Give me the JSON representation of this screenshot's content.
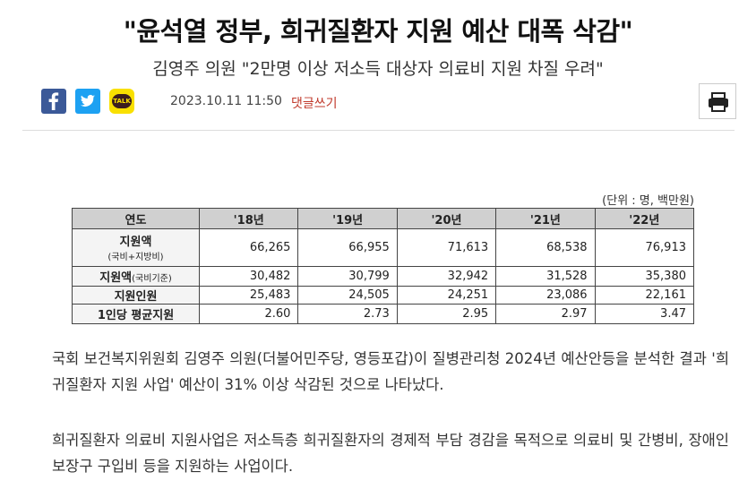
{
  "header": {
    "title": "\"윤석열 정부, 희귀질환자 지원 예산 대폭 삭감\"",
    "subtitle": "김영주 의원 \"2만명 이상 저소득 대상자 의료비 지원 차질 우려\""
  },
  "meta": {
    "kakao_label": "TALK",
    "datetime": "2023.10.11 11:50",
    "comment": "댓글쓰기"
  },
  "table": {
    "unit": "(단위 : 명, 백만원)",
    "header": [
      "연도",
      "'18년",
      "'19년",
      "'20년",
      "'21년",
      "'22년"
    ],
    "rows": [
      {
        "label": "지원액",
        "sublabel": "(국비+지방비)",
        "cells": [
          "66,265",
          "66,955",
          "71,613",
          "68,538",
          "76,913"
        ]
      },
      {
        "label": "지원액",
        "sublabel": "(국비기준)",
        "cells": [
          "30,482",
          "30,799",
          "32,942",
          "31,528",
          "35,380"
        ]
      },
      {
        "label": "지원인원",
        "cells": [
          "25,483",
          "24,505",
          "24,251",
          "23,086",
          "22,161"
        ]
      },
      {
        "label": "1인당 평균지원",
        "cells": [
          "2.60",
          "2.73",
          "2.95",
          "2.97",
          "3.47"
        ]
      }
    ]
  },
  "body": {
    "paragraphs": [
      "국회 보건복지위원회 김영주 의원(더불어민주당, 영등포갑)이 질병관리청 2024년 예산안등을 분석한 결과 '희귀질환자 지원 사업' 예산이 31% 이상 삭감된 것으로 나타났다.",
      "희귀질환자 의료비 지원사업은 저소득층 희귀질환자의 경제적 부담 경감을 목적으로 의료비 및 간병비, 장애인보장구 구입비 등을 지원하는 사업이다."
    ]
  }
}
